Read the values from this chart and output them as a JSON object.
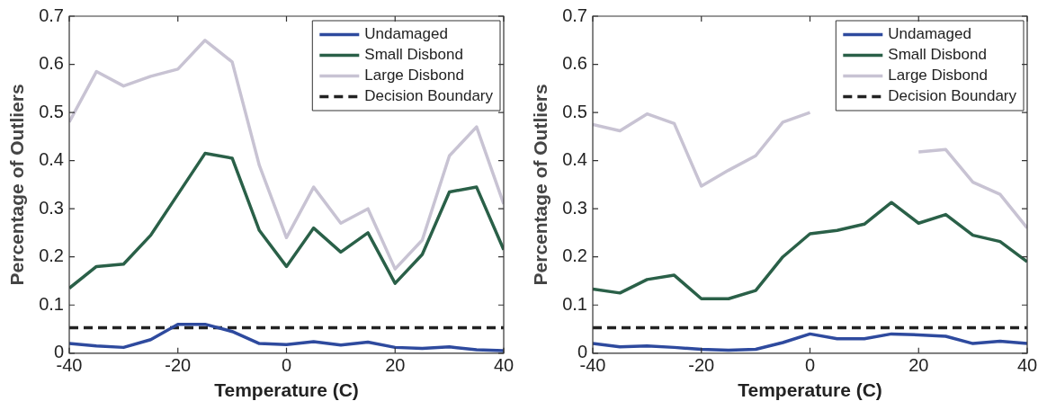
{
  "chart_data": [
    {
      "type": "line",
      "xlabel": "Temperature (C)",
      "ylabel": "Percentage of Outliers",
      "x": [
        -40,
        -35,
        -30,
        -25,
        -20,
        -15,
        -10,
        -5,
        0,
        5,
        10,
        15,
        20,
        25,
        30,
        35,
        40
      ],
      "series": [
        {
          "name": "Undamaged",
          "color": "#2e4a9e",
          "values": [
            0.02,
            0.015,
            0.012,
            0.028,
            0.06,
            0.06,
            0.045,
            0.02,
            0.018,
            0.024,
            0.017,
            0.023,
            0.012,
            0.01,
            0.013,
            0.007,
            0.005
          ]
        },
        {
          "name": "Small Disbond",
          "color": "#2a6048",
          "values": [
            0.135,
            0.18,
            0.185,
            0.245,
            0.33,
            0.415,
            0.405,
            0.255,
            0.18,
            0.26,
            0.21,
            0.25,
            0.145,
            0.205,
            0.335,
            0.345,
            0.215
          ]
        },
        {
          "name": "Large Disbond",
          "color": "#c8c3d3",
          "values": [
            0.48,
            0.585,
            0.555,
            0.575,
            0.59,
            0.65,
            0.605,
            0.39,
            0.24,
            0.345,
            0.27,
            0.3,
            0.175,
            0.235,
            0.41,
            0.47,
            0.31
          ]
        },
        {
          "name": "Decision Boundary",
          "color": "#222222",
          "line_style": "dashed",
          "values": [
            0.053,
            0.053,
            0.053,
            0.053,
            0.053,
            0.053,
            0.053,
            0.053,
            0.053,
            0.053,
            0.053,
            0.053,
            0.053,
            0.053,
            0.053,
            0.053,
            0.053
          ]
        }
      ],
      "xlim": [
        -40,
        40
      ],
      "xticks": [
        -40,
        -20,
        0,
        20,
        40
      ],
      "ylim": [
        0,
        0.7
      ],
      "yticks": [
        0,
        0.1,
        0.2,
        0.3,
        0.4,
        0.5,
        0.6,
        0.7
      ],
      "legend": "top right",
      "marker": "none",
      "grid": false
    },
    {
      "type": "line",
      "xlabel": "Temperature (C)",
      "ylabel": "Percentage of Outliers",
      "x": [
        -40,
        -35,
        -30,
        -25,
        -20,
        -15,
        -10,
        -5,
        0,
        5,
        10,
        15,
        20,
        25,
        30,
        35,
        40
      ],
      "series": [
        {
          "name": "Undamaged",
          "color": "#2e4a9e",
          "values": [
            0.02,
            0.013,
            0.015,
            0.012,
            0.008,
            0.006,
            0.008,
            0.022,
            0.04,
            0.03,
            0.03,
            0.04,
            0.038,
            0.035,
            0.02,
            0.025,
            0.02
          ]
        },
        {
          "name": "Small Disbond",
          "color": "#2a6048",
          "values": [
            0.133,
            0.125,
            0.153,
            0.162,
            0.113,
            0.113,
            0.13,
            0.2,
            0.248,
            0.255,
            0.268,
            0.313,
            0.27,
            0.288,
            0.245,
            0.232,
            0.19
          ]
        },
        {
          "name": "Large Disbond",
          "color": "#c8c3d3",
          "values": [
            0.475,
            0.462,
            0.497,
            0.477,
            0.347,
            0.38,
            0.41,
            0.48,
            0.5,
            null,
            null,
            null,
            0.418,
            0.423,
            0.355,
            0.33,
            0.26
          ]
        },
        {
          "name": "Decision Boundary",
          "color": "#222222",
          "line_style": "dashed",
          "values": [
            0.053,
            0.053,
            0.053,
            0.053,
            0.053,
            0.053,
            0.053,
            0.053,
            0.053,
            0.053,
            0.053,
            0.053,
            0.053,
            0.053,
            0.053,
            0.053,
            0.053
          ]
        }
      ],
      "xlim": [
        -40,
        40
      ],
      "xticks": [
        -40,
        -20,
        0,
        20,
        40
      ],
      "ylim": [
        0,
        0.7
      ],
      "yticks": [
        0,
        0.1,
        0.2,
        0.3,
        0.4,
        0.5,
        0.6,
        0.7
      ],
      "legend": "top right",
      "marker": "none",
      "grid": false
    }
  ]
}
